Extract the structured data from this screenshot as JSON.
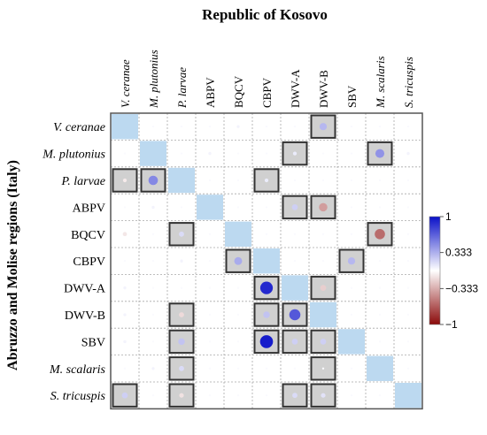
{
  "chart_data": {
    "type": "heatmap",
    "title": "Republic of Kosovo",
    "ylabel": "Abruzzo and Molise regions (Italy)",
    "x_labels": [
      {
        "text": "V. ceranae",
        "italic": true
      },
      {
        "text": "M. plutonius",
        "italic": true
      },
      {
        "text": "P. larvae",
        "italic": true
      },
      {
        "text": "ABPV",
        "italic": false
      },
      {
        "text": "BQCV",
        "italic": false
      },
      {
        "text": "CBPV",
        "italic": false
      },
      {
        "text": "DWV-A",
        "italic": false
      },
      {
        "text": "DWV-B",
        "italic": false
      },
      {
        "text": "SBV",
        "italic": false
      },
      {
        "text": "M. scalaris",
        "italic": true
      },
      {
        "text": "S. tricuspis",
        "italic": true
      }
    ],
    "y_labels": [
      {
        "text": "V. ceranae",
        "italic": true
      },
      {
        "text": "M. plutonius",
        "italic": true
      },
      {
        "text": "P. larvae",
        "italic": true
      },
      {
        "text": "ABPV",
        "italic": false
      },
      {
        "text": "BQCV",
        "italic": false
      },
      {
        "text": "CBPV",
        "italic": false
      },
      {
        "text": "DWV-A",
        "italic": false
      },
      {
        "text": "DWV-B",
        "italic": false
      },
      {
        "text": "SBV",
        "italic": false
      },
      {
        "text": "M. scalaris",
        "italic": true
      },
      {
        "text": "S. tricuspis",
        "italic": true
      }
    ],
    "values": [
      [
        1,
        0.02,
        0.02,
        0.02,
        0.05,
        0.02,
        0.02,
        0.3,
        0.02,
        0.02,
        0.02
      ],
      [
        0.02,
        1,
        0.02,
        0.05,
        0.02,
        0.02,
        0.08,
        0.02,
        0.02,
        0.45,
        0.05
      ],
      [
        -0.08,
        0.5,
        1,
        0.02,
        0.02,
        0.08,
        0.02,
        0.02,
        0.02,
        0.02,
        0.02
      ],
      [
        0.02,
        0.05,
        0.02,
        1,
        0.02,
        0.02,
        0.2,
        -0.4,
        0.02,
        0.02,
        0.02
      ],
      [
        -0.1,
        0.02,
        0.15,
        0.02,
        1,
        0.02,
        0.02,
        0.02,
        0.02,
        -0.6,
        0.02
      ],
      [
        0.02,
        0.02,
        0.05,
        0.02,
        0.35,
        1,
        0.02,
        0.02,
        0.3,
        0.02,
        0.02
      ],
      [
        0.05,
        0.02,
        0.02,
        0.02,
        0.02,
        0.9,
        1,
        -0.2,
        0.02,
        0.02,
        0.02
      ],
      [
        0.05,
        0.02,
        -0.15,
        0.02,
        0.02,
        0.25,
        0.7,
        1,
        0.02,
        0.02,
        0.02
      ],
      [
        0.05,
        0.02,
        0.25,
        0.02,
        0.02,
        0.95,
        0.2,
        0.2,
        1,
        0.02,
        0.02
      ],
      [
        0.02,
        0.05,
        0.15,
        0.02,
        0.02,
        0.02,
        0.02,
        0.02,
        0.02,
        1,
        0.02
      ],
      [
        0.2,
        0.02,
        -0.12,
        0.02,
        0.02,
        0.02,
        0.15,
        0.12,
        0.02,
        0.02,
        1
      ]
    ],
    "significant": [
      [
        0,
        7
      ],
      [
        1,
        6
      ],
      [
        1,
        9
      ],
      [
        2,
        0
      ],
      [
        2,
        1
      ],
      [
        2,
        5
      ],
      [
        3,
        6
      ],
      [
        3,
        7
      ],
      [
        4,
        2
      ],
      [
        4,
        9
      ],
      [
        5,
        4
      ],
      [
        5,
        8
      ],
      [
        6,
        5
      ],
      [
        6,
        7
      ],
      [
        7,
        2
      ],
      [
        7,
        5
      ],
      [
        7,
        6
      ],
      [
        8,
        2
      ],
      [
        8,
        5
      ],
      [
        8,
        6
      ],
      [
        8,
        7
      ],
      [
        9,
        2
      ],
      [
        9,
        7
      ],
      [
        10,
        0
      ],
      [
        10,
        2
      ],
      [
        10,
        6
      ],
      [
        10,
        7
      ]
    ],
    "colorbar": {
      "range": [
        -1,
        1
      ],
      "ticks": [
        {
          "value": 1,
          "label": "1"
        },
        {
          "value": 0.333,
          "label": "0.333"
        },
        {
          "value": -0.333,
          "label": "−0.333"
        },
        {
          "value": -1,
          "label": "−1"
        }
      ],
      "colors": {
        "positive": "#0a10c8",
        "zero": "#ffffff",
        "negative": "#8b0a0a"
      }
    },
    "diagonal_color": "#bcd9f0",
    "significant_fill": "#d0d0d0",
    "grid": true
  }
}
